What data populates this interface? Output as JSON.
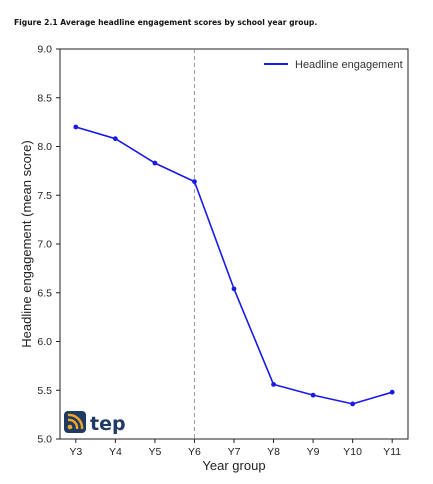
{
  "figure": {
    "caption": "Figure 2.1 Average headline engagement scores by school year group."
  },
  "logo": {
    "text": "tep",
    "icon": "rss-feed-icon"
  },
  "colors": {
    "series": "#1a1ae6",
    "divider": "#999999",
    "logo_bg": "#1f3b63",
    "logo_accent": "#f5a623"
  },
  "chart_data": {
    "type": "line",
    "title": "",
    "xlabel": "Year group",
    "ylabel": "Headline engagement (mean score)",
    "categories": [
      "Y3",
      "Y4",
      "Y5",
      "Y6",
      "Y7",
      "Y8",
      "Y9",
      "Y10",
      "Y11"
    ],
    "series": [
      {
        "name": "Headline engagement",
        "values": [
          8.2,
          8.08,
          7.83,
          7.64,
          6.54,
          5.56,
          5.45,
          5.36,
          5.48
        ]
      }
    ],
    "ylim": [
      5.0,
      9.0
    ],
    "yticks": [
      "5.0",
      "5.5",
      "6.0",
      "6.5",
      "7.0",
      "7.5",
      "8.0",
      "8.5",
      "9.0"
    ],
    "vline_at": "Y6",
    "legend": "top-right",
    "grid": false
  }
}
